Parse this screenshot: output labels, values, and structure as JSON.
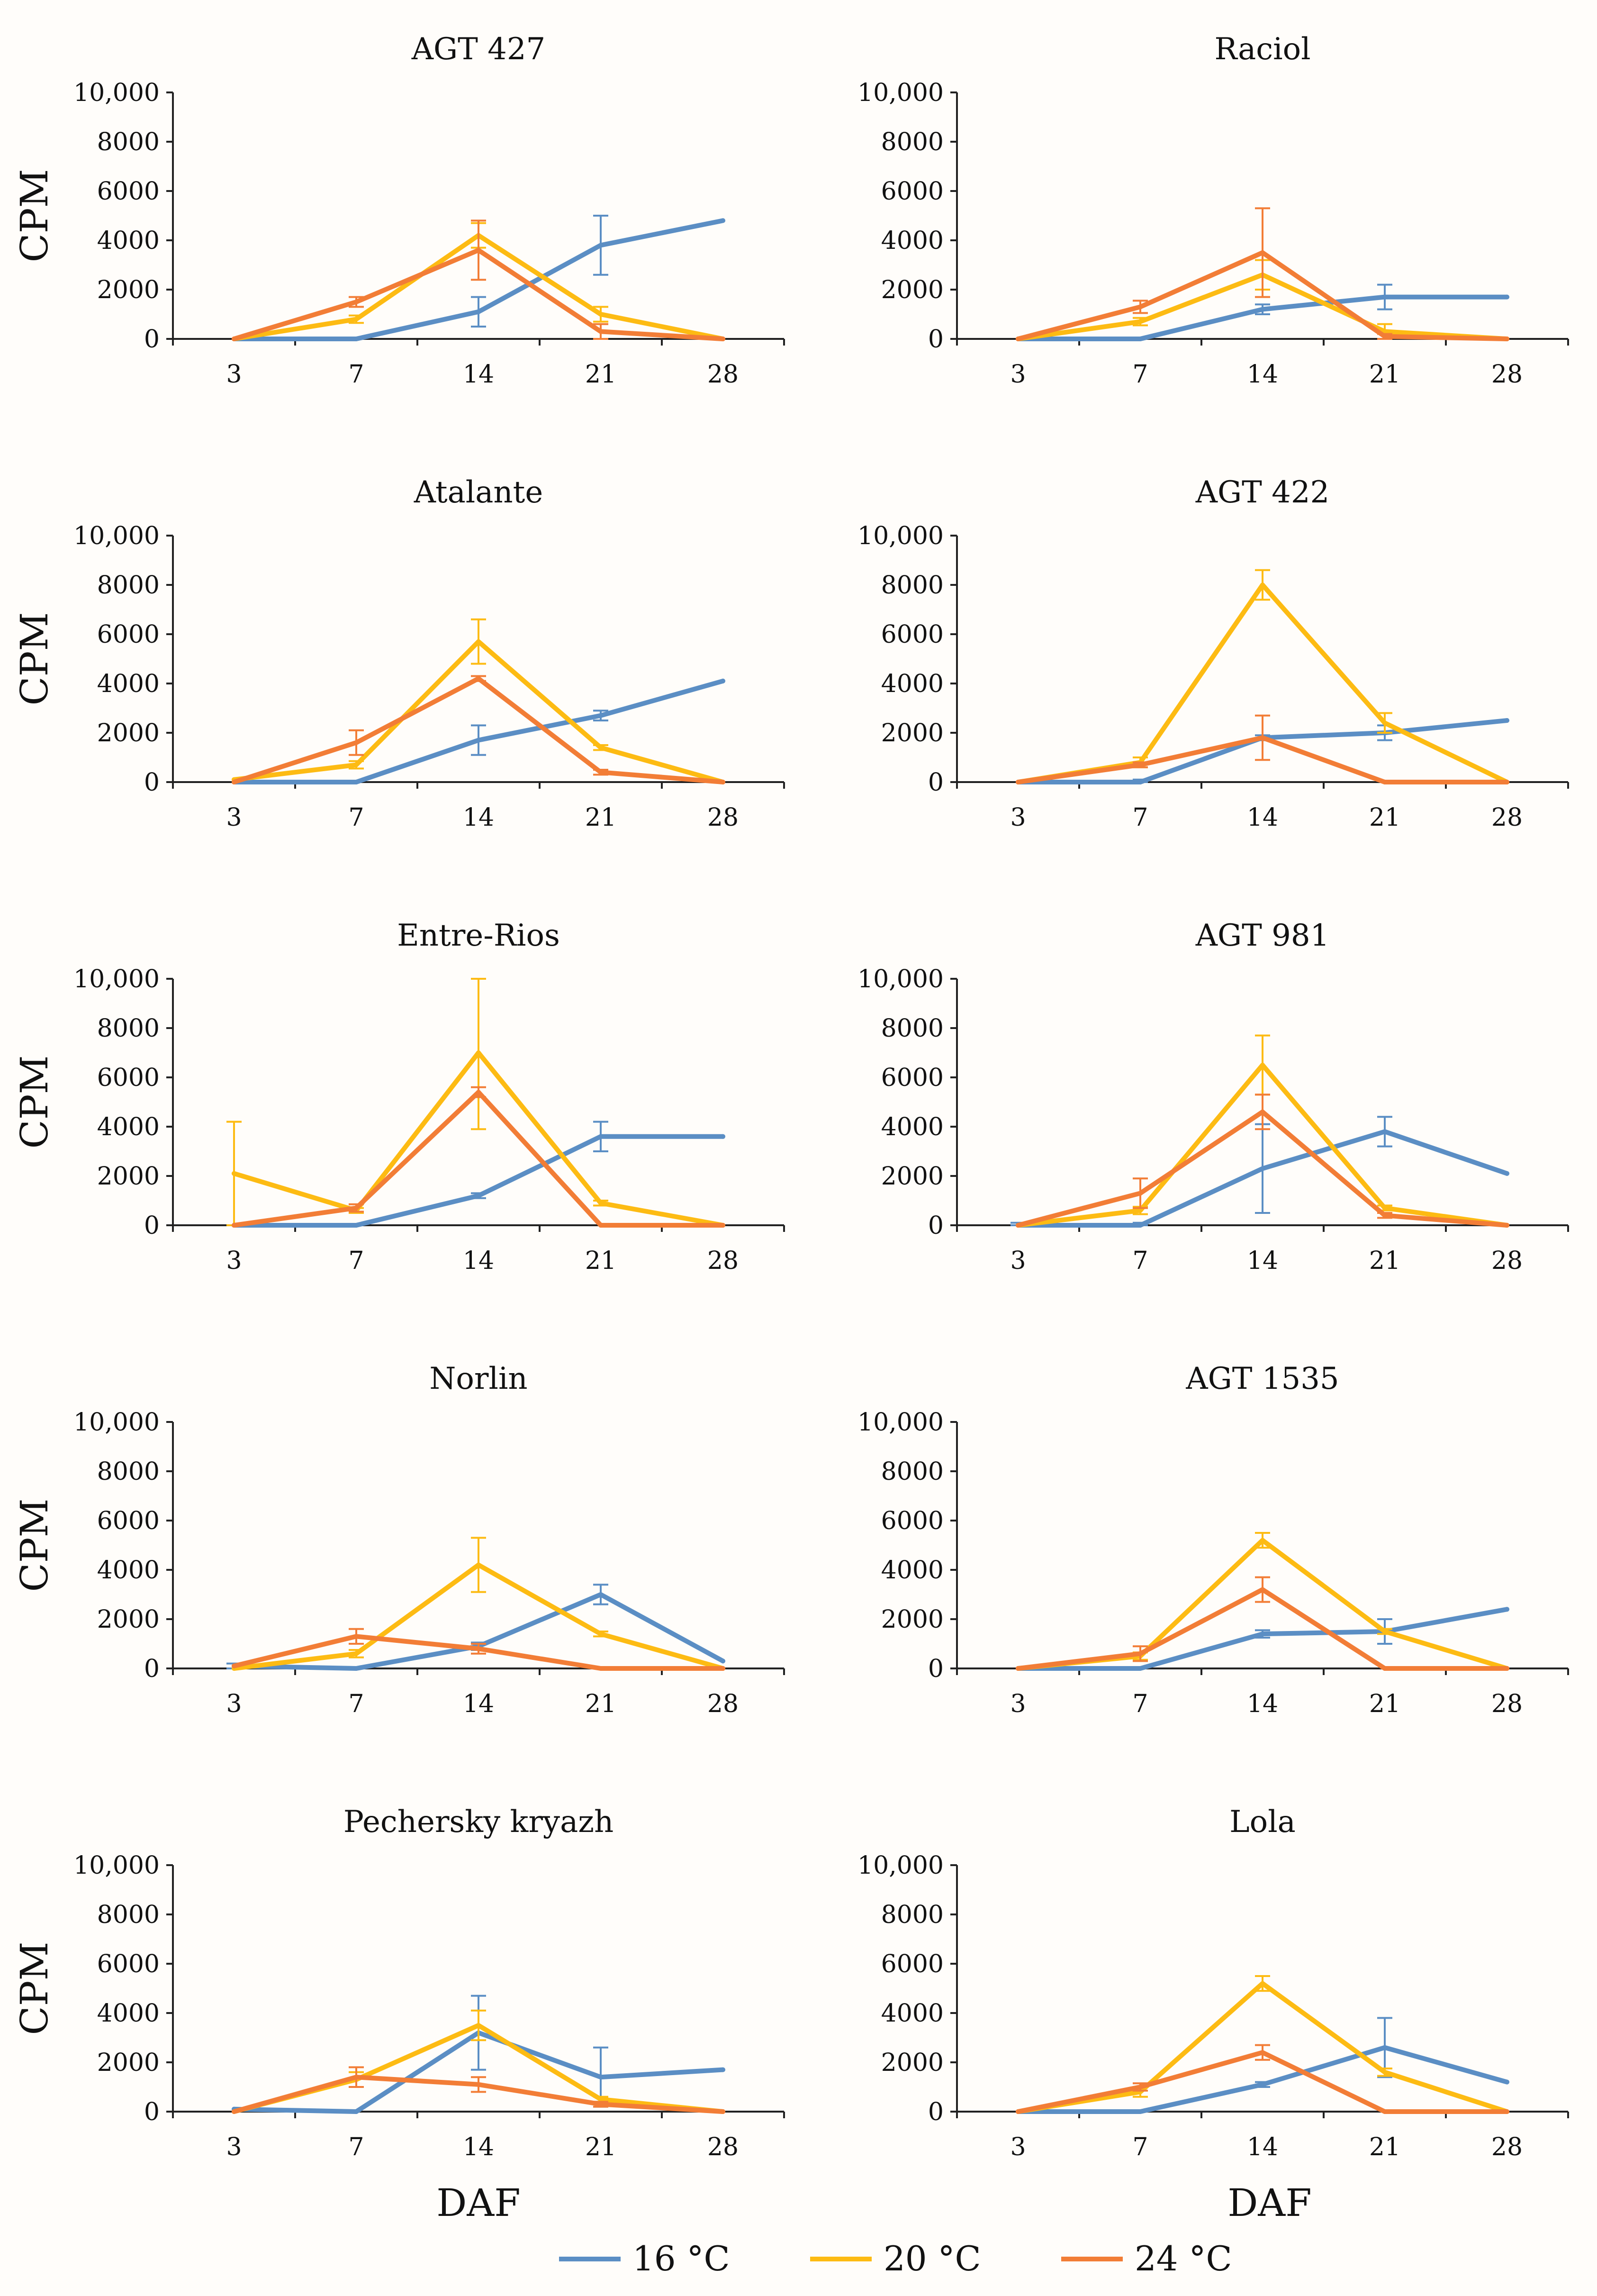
{
  "colors": {
    "16": "#5b8ec4",
    "20": "#fdbb13",
    "24": "#f27d36"
  },
  "legend": [
    {
      "key": "16",
      "label": "16 °C"
    },
    {
      "key": "20",
      "label": "20 °C"
    },
    {
      "key": "24",
      "label": "24 °C"
    }
  ],
  "shared": {
    "xlabel": "DAF",
    "ylabel": "CPM"
  },
  "chart_data": [
    {
      "type": "line",
      "title": "AGT 427",
      "categories": [
        "3",
        "7",
        "14",
        "21",
        "28"
      ],
      "ylim": [
        0,
        10000
      ],
      "yticks": [
        "0",
        "2000",
        "4000",
        "6000",
        "8000",
        "10,000"
      ],
      "xlabel": "",
      "ylabel": "CPM",
      "series": [
        {
          "name": "16 °C",
          "key": "16",
          "values": [
            0,
            0,
            1100,
            3800,
            4800
          ],
          "errors": [
            0,
            0,
            600,
            1200,
            0
          ]
        },
        {
          "name": "20 °C",
          "key": "20",
          "values": [
            0,
            800,
            4200,
            1000,
            0
          ],
          "errors": [
            0,
            150,
            500,
            300,
            0
          ]
        },
        {
          "name": "24 °C",
          "key": "24",
          "values": [
            0,
            1500,
            3600,
            300,
            0
          ],
          "errors": [
            0,
            200,
            1200,
            300,
            0
          ]
        }
      ]
    },
    {
      "type": "line",
      "title": "Raciol",
      "categories": [
        "3",
        "7",
        "14",
        "21",
        "28"
      ],
      "ylim": [
        0,
        10000
      ],
      "yticks": [
        "0",
        "2000",
        "4000",
        "6000",
        "8000",
        "10,000"
      ],
      "xlabel": "",
      "ylabel": "",
      "series": [
        {
          "name": "16 °C",
          "key": "16",
          "values": [
            0,
            0,
            1200,
            1700,
            1700
          ],
          "errors": [
            0,
            0,
            200,
            500,
            0
          ]
        },
        {
          "name": "20 °C",
          "key": "20",
          "values": [
            0,
            700,
            2600,
            300,
            0
          ],
          "errors": [
            0,
            150,
            600,
            300,
            0
          ]
        },
        {
          "name": "24 °C",
          "key": "24",
          "values": [
            0,
            1300,
            3500,
            100,
            0
          ],
          "errors": [
            0,
            250,
            1800,
            100,
            0
          ]
        }
      ]
    },
    {
      "type": "line",
      "title": "Atalante",
      "categories": [
        "3",
        "7",
        "14",
        "21",
        "28"
      ],
      "ylim": [
        0,
        10000
      ],
      "yticks": [
        "0",
        "2000",
        "4000",
        "6000",
        "8000",
        "10,000"
      ],
      "xlabel": "",
      "ylabel": "CPM",
      "series": [
        {
          "name": "16 °C",
          "key": "16",
          "values": [
            0,
            0,
            1700,
            2700,
            4100
          ],
          "errors": [
            0,
            0,
            600,
            200,
            0
          ]
        },
        {
          "name": "20 °C",
          "key": "20",
          "values": [
            100,
            700,
            5700,
            1400,
            0
          ],
          "errors": [
            0,
            150,
            900,
            100,
            0
          ]
        },
        {
          "name": "24 °C",
          "key": "24",
          "values": [
            0,
            1600,
            4200,
            400,
            0
          ],
          "errors": [
            0,
            500,
            100,
            100,
            0
          ]
        }
      ]
    },
    {
      "type": "line",
      "title": "AGT 422",
      "categories": [
        "3",
        "7",
        "14",
        "21",
        "28"
      ],
      "ylim": [
        0,
        10000
      ],
      "yticks": [
        "0",
        "2000",
        "4000",
        "6000",
        "8000",
        "10,000"
      ],
      "xlabel": "",
      "ylabel": "",
      "series": [
        {
          "name": "16 °C",
          "key": "16",
          "values": [
            0,
            0,
            1800,
            2000,
            2500
          ],
          "errors": [
            0,
            100,
            100,
            300,
            0
          ]
        },
        {
          "name": "20 °C",
          "key": "20",
          "values": [
            0,
            800,
            8000,
            2400,
            0
          ],
          "errors": [
            0,
            200,
            600,
            400,
            0
          ]
        },
        {
          "name": "24 °C",
          "key": "24",
          "values": [
            0,
            700,
            1800,
            0,
            0
          ],
          "errors": [
            0,
            100,
            900,
            0,
            0
          ]
        }
      ]
    },
    {
      "type": "line",
      "title": "Entre-Rios",
      "categories": [
        "3",
        "7",
        "14",
        "21",
        "28"
      ],
      "ylim": [
        0,
        10000
      ],
      "yticks": [
        "0",
        "2000",
        "4000",
        "6000",
        "8000",
        "10,000"
      ],
      "xlabel": "",
      "ylabel": "CPM",
      "series": [
        {
          "name": "16 °C",
          "key": "16",
          "values": [
            0,
            0,
            1200,
            3600,
            3600
          ],
          "errors": [
            0,
            0,
            100,
            600,
            0
          ]
        },
        {
          "name": "20 °C",
          "key": "20",
          "values": [
            2100,
            600,
            7000,
            900,
            0
          ],
          "errors": [
            2100,
            100,
            3100,
            100,
            0
          ]
        },
        {
          "name": "24 °C",
          "key": "24",
          "values": [
            0,
            700,
            5400,
            0,
            0
          ],
          "errors": [
            0,
            150,
            200,
            0,
            0
          ]
        }
      ]
    },
    {
      "type": "line",
      "title": "AGT 981",
      "categories": [
        "3",
        "7",
        "14",
        "21",
        "28"
      ],
      "ylim": [
        0,
        10000
      ],
      "yticks": [
        "0",
        "2000",
        "4000",
        "6000",
        "8000",
        "10,000"
      ],
      "xlabel": "",
      "ylabel": "",
      "series": [
        {
          "name": "16 °C",
          "key": "16",
          "values": [
            0,
            0,
            2300,
            3800,
            2100
          ],
          "errors": [
            100,
            100,
            1800,
            600,
            0
          ]
        },
        {
          "name": "20 °C",
          "key": "20",
          "values": [
            0,
            600,
            6500,
            700,
            0
          ],
          "errors": [
            0,
            150,
            1200,
            100,
            0
          ]
        },
        {
          "name": "24 °C",
          "key": "24",
          "values": [
            0,
            1300,
            4600,
            400,
            0
          ],
          "errors": [
            0,
            600,
            700,
            100,
            0
          ]
        }
      ]
    },
    {
      "type": "line",
      "title": "Norlin",
      "categories": [
        "3",
        "7",
        "14",
        "21",
        "28"
      ],
      "ylim": [
        0,
        10000
      ],
      "yticks": [
        "0",
        "2000",
        "4000",
        "6000",
        "8000",
        "10,000"
      ],
      "xlabel": "",
      "ylabel": "CPM",
      "series": [
        {
          "name": "16 °C",
          "key": "16",
          "values": [
            100,
            0,
            900,
            3000,
            300
          ],
          "errors": [
            100,
            0,
            150,
            400,
            0
          ]
        },
        {
          "name": "20 °C",
          "key": "20",
          "values": [
            0,
            600,
            4200,
            1400,
            0
          ],
          "errors": [
            0,
            150,
            1100,
            100,
            0
          ]
        },
        {
          "name": "24 °C",
          "key": "24",
          "values": [
            100,
            1300,
            800,
            0,
            0
          ],
          "errors": [
            0,
            300,
            200,
            0,
            0
          ]
        }
      ]
    },
    {
      "type": "line",
      "title": "AGT 1535",
      "categories": [
        "3",
        "7",
        "14",
        "21",
        "28"
      ],
      "ylim": [
        0,
        10000
      ],
      "yticks": [
        "0",
        "2000",
        "4000",
        "6000",
        "8000",
        "10,000"
      ],
      "xlabel": "",
      "ylabel": "",
      "series": [
        {
          "name": "16 °C",
          "key": "16",
          "values": [
            0,
            0,
            1400,
            1500,
            2400
          ],
          "errors": [
            0,
            0,
            150,
            500,
            0
          ]
        },
        {
          "name": "20 °C",
          "key": "20",
          "values": [
            0,
            500,
            5200,
            1500,
            0
          ],
          "errors": [
            0,
            150,
            300,
            100,
            0
          ]
        },
        {
          "name": "24 °C",
          "key": "24",
          "values": [
            0,
            600,
            3200,
            0,
            0
          ],
          "errors": [
            0,
            300,
            500,
            0,
            0
          ]
        }
      ]
    },
    {
      "type": "line",
      "title": "Pechersky kryazh",
      "categories": [
        "3",
        "7",
        "14",
        "21",
        "28"
      ],
      "ylim": [
        0,
        10000
      ],
      "yticks": [
        "0",
        "2000",
        "4000",
        "6000",
        "8000",
        "10,000"
      ],
      "xlabel": "DAF",
      "ylabel": "CPM",
      "series": [
        {
          "name": "16 °C",
          "key": "16",
          "values": [
            100,
            0,
            3200,
            1400,
            1700
          ],
          "errors": [
            0,
            0,
            1500,
            1200,
            0
          ]
        },
        {
          "name": "20 °C",
          "key": "20",
          "values": [
            0,
            1300,
            3500,
            500,
            0
          ],
          "errors": [
            0,
            300,
            600,
            100,
            0
          ]
        },
        {
          "name": "24 °C",
          "key": "24",
          "values": [
            0,
            1400,
            1100,
            300,
            0
          ],
          "errors": [
            0,
            400,
            300,
            100,
            0
          ]
        }
      ]
    },
    {
      "type": "line",
      "title": "Lola",
      "categories": [
        "3",
        "7",
        "14",
        "21",
        "28"
      ],
      "ylim": [
        0,
        10000
      ],
      "yticks": [
        "0",
        "2000",
        "4000",
        "6000",
        "8000",
        "10,000"
      ],
      "xlabel": "DAF",
      "ylabel": "",
      "series": [
        {
          "name": "16 °C",
          "key": "16",
          "values": [
            0,
            0,
            1100,
            2600,
            1200
          ],
          "errors": [
            0,
            0,
            100,
            1200,
            0
          ]
        },
        {
          "name": "20 °C",
          "key": "20",
          "values": [
            0,
            800,
            5200,
            1600,
            0
          ],
          "errors": [
            0,
            200,
            300,
            150,
            0
          ]
        },
        {
          "name": "24 °C",
          "key": "24",
          "values": [
            0,
            1000,
            2400,
            0,
            0
          ],
          "errors": [
            0,
            150,
            300,
            0,
            0
          ]
        }
      ]
    }
  ]
}
